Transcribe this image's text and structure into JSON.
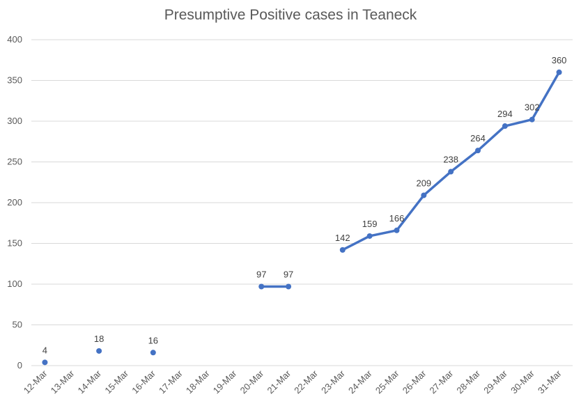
{
  "chart_data": {
    "type": "line",
    "title": "Presumptive Positive cases in Teaneck",
    "xlabel": "",
    "ylabel": "",
    "ylim": [
      0,
      400
    ],
    "yticks": [
      0,
      50,
      100,
      150,
      200,
      250,
      300,
      350,
      400
    ],
    "grid": true,
    "legend": "none",
    "categories": [
      "12-Mar",
      "13-Mar",
      "14-Mar",
      "15-Mar",
      "16-Mar",
      "17-Mar",
      "18-Mar",
      "19-Mar",
      "20-Mar",
      "21-Mar",
      "22-Mar",
      "23-Mar",
      "24-Mar",
      "25-Mar",
      "26-Mar",
      "27-Mar",
      "28-Mar",
      "29-Mar",
      "30-Mar",
      "31-Mar"
    ],
    "series": [
      {
        "color": "#4472C4",
        "values": [
          4,
          null,
          18,
          null,
          16,
          null,
          null,
          null,
          97,
          97,
          null,
          142,
          159,
          166,
          209,
          238,
          264,
          294,
          302,
          360
        ]
      }
    ]
  }
}
